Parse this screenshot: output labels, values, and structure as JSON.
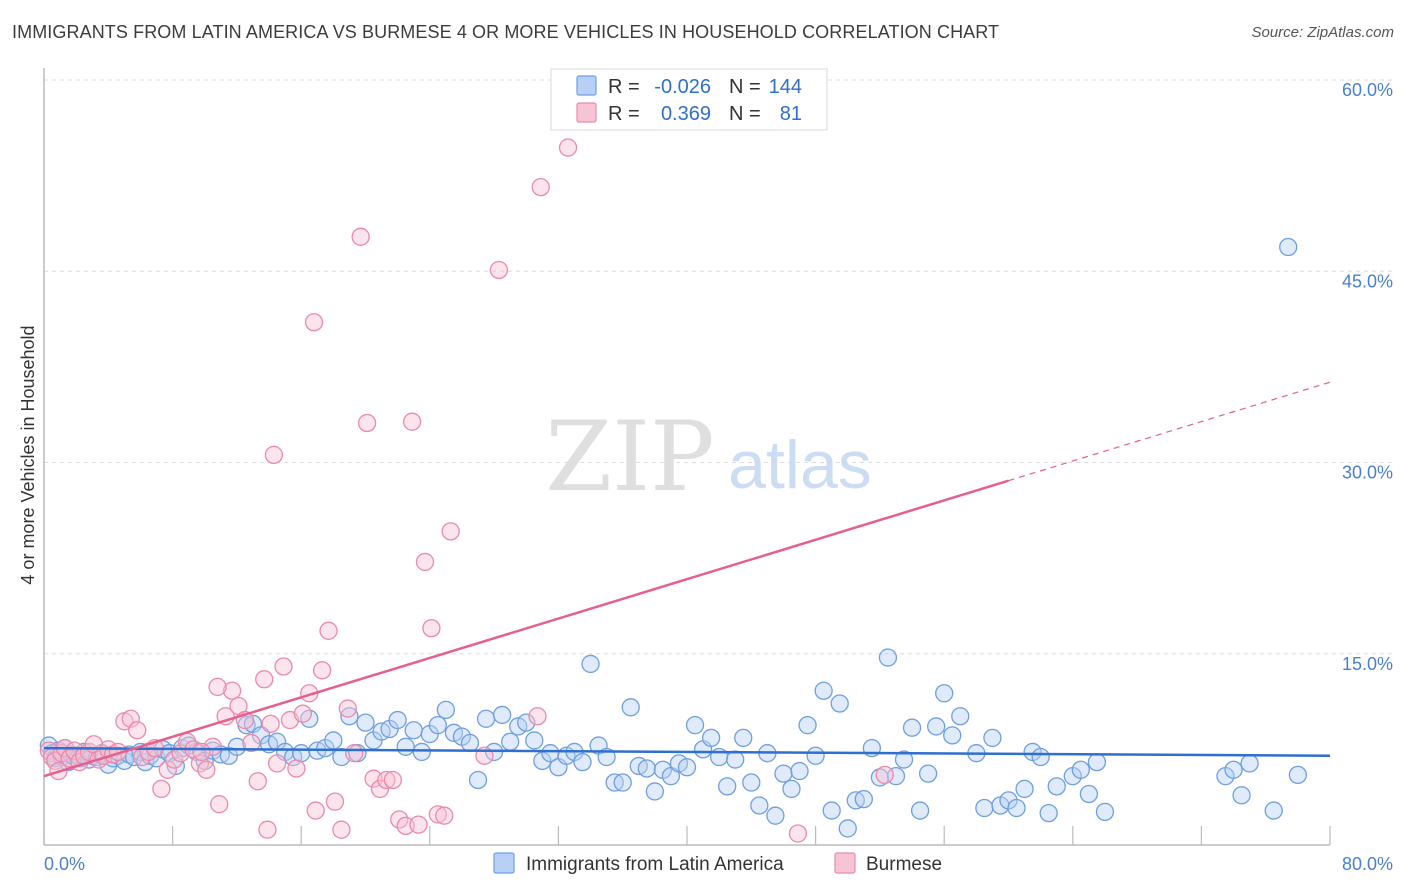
{
  "header": {
    "title": "IMMIGRANTS FROM LATIN AMERICA VS BURMESE 4 OR MORE VEHICLES IN HOUSEHOLD CORRELATION CHART",
    "source": "Source: ZipAtlas.com"
  },
  "watermark": {
    "zip": "ZIP",
    "atlas": "atlas"
  },
  "colors": {
    "blue": "#6f9fe0",
    "blue_fill": "#b8d0f5",
    "blue_line": "#2f6fcf",
    "pink": "#eb8aaa",
    "pink_fill": "#f7c4d5",
    "pink_line": "#e5608a",
    "axis_text": "#4a7fd0",
    "grid": "#dcdcdc"
  },
  "chart_data": {
    "type": "scatter",
    "title": "IMMIGRANTS FROM LATIN AMERICA VS BURMESE 4 OR MORE VEHICLES IN HOUSEHOLD CORRELATION CHART",
    "xlabel": "",
    "ylabel": "4 or more Vehicles in Household",
    "xlim": [
      0,
      80
    ],
    "ylim": [
      0,
      60
    ],
    "x_tick_labels": [
      "0.0%",
      "80.0%"
    ],
    "y_ticks": [
      15,
      30,
      45,
      60
    ],
    "y_tick_labels": [
      "15.0%",
      "30.0%",
      "45.0%",
      "60.0%"
    ],
    "legend": {
      "r_label": "R =",
      "n_label": "N =",
      "rows": [
        {
          "series": "Immigrants from Latin America",
          "r": "-0.026",
          "n": "144"
        },
        {
          "series": "Burmese",
          "r": "0.369",
          "n": "81"
        }
      ]
    },
    "series": [
      {
        "name": "Immigrants from Latin America",
        "color": "#6f9fe0",
        "trend": {
          "x0": 0,
          "y0": 7.6,
          "x1": 80,
          "y1": 7.0,
          "solid_until": 80
        },
        "points": [
          [
            0.3,
            7.8
          ],
          [
            0.5,
            7.2
          ],
          [
            0.7,
            6.8
          ],
          [
            0.9,
            7.4
          ],
          [
            1.1,
            6.9
          ],
          [
            1.3,
            7.6
          ],
          [
            1.5,
            6.5
          ],
          [
            1.7,
            7.1
          ],
          [
            1.9,
            6.9
          ],
          [
            2.1,
            7.0
          ],
          [
            2.3,
            6.8
          ],
          [
            2.5,
            7.3
          ],
          [
            2.8,
            6.7
          ],
          [
            3.0,
            7.0
          ],
          [
            3.3,
            6.9
          ],
          [
            3.6,
            7.2
          ],
          [
            4.0,
            6.3
          ],
          [
            4.3,
            6.8
          ],
          [
            4.6,
            7.0
          ],
          [
            5.0,
            6.6
          ],
          [
            5.3,
            7.1
          ],
          [
            5.6,
            6.9
          ],
          [
            6.0,
            7.3
          ],
          [
            6.3,
            6.5
          ],
          [
            6.6,
            7.0
          ],
          [
            7.0,
            6.8
          ],
          [
            7.4,
            7.5
          ],
          [
            7.8,
            7.2
          ],
          [
            8.2,
            6.2
          ],
          [
            8.6,
            7.6
          ],
          [
            9.0,
            7.8
          ],
          [
            9.5,
            7.3
          ],
          [
            10.0,
            6.6
          ],
          [
            10.5,
            7.4
          ],
          [
            11.0,
            7.1
          ],
          [
            11.5,
            7.0
          ],
          [
            12.0,
            7.7
          ],
          [
            12.6,
            9.4
          ],
          [
            13.0,
            9.5
          ],
          [
            13.5,
            8.6
          ],
          [
            14.0,
            7.9
          ],
          [
            14.5,
            8.1
          ],
          [
            15.0,
            7.3
          ],
          [
            15.5,
            6.9
          ],
          [
            16.0,
            7.2
          ],
          [
            16.5,
            9.9
          ],
          [
            17.0,
            7.4
          ],
          [
            17.5,
            7.6
          ],
          [
            18.0,
            8.2
          ],
          [
            18.5,
            6.9
          ],
          [
            19.0,
            10.1
          ],
          [
            19.5,
            7.2
          ],
          [
            20.0,
            9.6
          ],
          [
            20.5,
            8.2
          ],
          [
            21.0,
            8.9
          ],
          [
            21.5,
            9.1
          ],
          [
            22.0,
            9.8
          ],
          [
            22.5,
            7.7
          ],
          [
            23.0,
            9.0
          ],
          [
            23.5,
            7.3
          ],
          [
            24.0,
            8.7
          ],
          [
            24.5,
            9.4
          ],
          [
            25.0,
            10.6
          ],
          [
            25.5,
            8.8
          ],
          [
            26.0,
            8.5
          ],
          [
            26.5,
            8.0
          ],
          [
            27.0,
            5.1
          ],
          [
            27.5,
            9.9
          ],
          [
            28.0,
            7.3
          ],
          [
            28.5,
            10.2
          ],
          [
            29.0,
            8.1
          ],
          [
            29.5,
            9.3
          ],
          [
            30.0,
            9.6
          ],
          [
            30.5,
            8.2
          ],
          [
            31.0,
            6.6
          ],
          [
            31.5,
            7.2
          ],
          [
            32.0,
            6.1
          ],
          [
            32.5,
            7.0
          ],
          [
            33.0,
            7.3
          ],
          [
            33.5,
            6.5
          ],
          [
            34.0,
            14.2
          ],
          [
            34.5,
            7.8
          ],
          [
            35.0,
            6.9
          ],
          [
            35.5,
            4.9
          ],
          [
            36.0,
            4.9
          ],
          [
            36.5,
            10.8
          ],
          [
            37.0,
            6.2
          ],
          [
            37.5,
            6.0
          ],
          [
            38.0,
            4.2
          ],
          [
            38.5,
            5.9
          ],
          [
            39.0,
            5.4
          ],
          [
            39.5,
            6.4
          ],
          [
            40.0,
            6.1
          ],
          [
            40.5,
            9.4
          ],
          [
            41.0,
            7.5
          ],
          [
            41.5,
            8.4
          ],
          [
            42.0,
            6.9
          ],
          [
            42.5,
            4.6
          ],
          [
            43.0,
            6.7
          ],
          [
            43.5,
            8.4
          ],
          [
            44.0,
            4.9
          ],
          [
            44.5,
            3.1
          ],
          [
            45.0,
            7.2
          ],
          [
            45.5,
            2.3
          ],
          [
            46.0,
            5.6
          ],
          [
            46.5,
            4.4
          ],
          [
            47.0,
            5.8
          ],
          [
            47.5,
            9.4
          ],
          [
            48.0,
            7.0
          ],
          [
            48.5,
            12.1
          ],
          [
            49.0,
            2.7
          ],
          [
            49.5,
            11.1
          ],
          [
            50.0,
            1.3
          ],
          [
            50.5,
            3.5
          ],
          [
            51.0,
            3.6
          ],
          [
            51.5,
            7.6
          ],
          [
            52.0,
            5.3
          ],
          [
            52.5,
            14.7
          ],
          [
            53.0,
            5.4
          ],
          [
            53.5,
            6.7
          ],
          [
            54.0,
            9.2
          ],
          [
            54.5,
            2.7
          ],
          [
            55.0,
            5.6
          ],
          [
            55.5,
            9.3
          ],
          [
            56.0,
            11.9
          ],
          [
            56.5,
            8.6
          ],
          [
            57.0,
            10.1
          ],
          [
            58.0,
            7.2
          ],
          [
            58.5,
            2.9
          ],
          [
            59.0,
            8.4
          ],
          [
            59.5,
            3.1
          ],
          [
            60.0,
            3.5
          ],
          [
            60.5,
            2.9
          ],
          [
            61.0,
            4.4
          ],
          [
            61.5,
            7.3
          ],
          [
            62.0,
            6.9
          ],
          [
            62.5,
            2.5
          ],
          [
            63.0,
            4.6
          ],
          [
            64.0,
            5.4
          ],
          [
            64.5,
            5.9
          ],
          [
            65.0,
            4.0
          ],
          [
            65.5,
            6.5
          ],
          [
            66.0,
            2.6
          ],
          [
            77.4,
            46.9
          ],
          [
            78.0,
            5.5
          ],
          [
            73.5,
            5.4
          ],
          [
            74.0,
            5.9
          ],
          [
            74.5,
            3.9
          ],
          [
            75.0,
            6.4
          ],
          [
            76.5,
            2.7
          ]
        ]
      },
      {
        "name": "Burmese",
        "color": "#eb8aaa",
        "trend": {
          "x0": 0,
          "y0": 5.4,
          "x1": 80,
          "y1": 36.3,
          "solid_until": 60
        },
        "points": [
          [
            0.3,
            7.4
          ],
          [
            0.5,
            6.9
          ],
          [
            0.7,
            6.6
          ],
          [
            0.9,
            5.8
          ],
          [
            1.1,
            7.2
          ],
          [
            1.3,
            7.6
          ],
          [
            1.6,
            6.8
          ],
          [
            1.9,
            7.4
          ],
          [
            2.2,
            6.5
          ],
          [
            2.5,
            7.0
          ],
          [
            2.8,
            7.3
          ],
          [
            3.1,
            7.9
          ],
          [
            3.4,
            6.7
          ],
          [
            3.7,
            7.0
          ],
          [
            4.0,
            7.5
          ],
          [
            4.3,
            7.1
          ],
          [
            4.6,
            7.3
          ],
          [
            5.0,
            9.7
          ],
          [
            5.4,
            9.9
          ],
          [
            5.8,
            9.0
          ],
          [
            6.1,
            6.9
          ],
          [
            6.5,
            7.3
          ],
          [
            6.9,
            7.6
          ],
          [
            7.3,
            4.4
          ],
          [
            7.7,
            5.9
          ],
          [
            8.1,
            6.7
          ],
          [
            8.5,
            7.2
          ],
          [
            8.9,
            8.1
          ],
          [
            9.3,
            7.5
          ],
          [
            9.7,
            6.4
          ],
          [
            10.1,
            5.9
          ],
          [
            10.5,
            7.7
          ],
          [
            10.9,
            3.2
          ],
          [
            11.3,
            10.1
          ],
          [
            11.7,
            12.1
          ],
          [
            12.1,
            10.9
          ],
          [
            12.5,
            9.8
          ],
          [
            12.9,
            8.0
          ],
          [
            13.3,
            5.0
          ],
          [
            13.7,
            13.0
          ],
          [
            14.1,
            9.5
          ],
          [
            14.5,
            6.4
          ],
          [
            14.9,
            14.0
          ],
          [
            15.3,
            9.8
          ],
          [
            15.7,
            6.0
          ],
          [
            16.1,
            10.3
          ],
          [
            16.5,
            11.9
          ],
          [
            16.9,
            2.7
          ],
          [
            17.3,
            13.7
          ],
          [
            17.7,
            16.8
          ],
          [
            18.1,
            3.4
          ],
          [
            18.5,
            1.2
          ],
          [
            18.9,
            10.7
          ],
          [
            19.3,
            7.2
          ],
          [
            19.7,
            47.7
          ],
          [
            20.1,
            33.1
          ],
          [
            20.5,
            5.2
          ],
          [
            20.9,
            4.4
          ],
          [
            21.3,
            5.1
          ],
          [
            21.7,
            5.1
          ],
          [
            22.1,
            2.0
          ],
          [
            22.5,
            1.5
          ],
          [
            22.9,
            33.2
          ],
          [
            23.3,
            1.6
          ],
          [
            23.7,
            22.2
          ],
          [
            24.1,
            17.0
          ],
          [
            24.5,
            2.4
          ],
          [
            24.9,
            2.3
          ],
          [
            25.3,
            24.6
          ],
          [
            16.8,
            41.0
          ],
          [
            28.3,
            45.1
          ],
          [
            30.9,
            51.6
          ],
          [
            32.6,
            54.7
          ],
          [
            14.3,
            30.6
          ],
          [
            9.8,
            7.3
          ],
          [
            10.8,
            12.4
          ],
          [
            27.4,
            7.0
          ],
          [
            30.7,
            10.1
          ],
          [
            13.9,
            1.2
          ],
          [
            52.3,
            5.5
          ],
          [
            46.9,
            0.9
          ]
        ]
      }
    ]
  },
  "bottom_legend": {
    "items": [
      "Immigrants from Latin America",
      "Burmese"
    ]
  }
}
